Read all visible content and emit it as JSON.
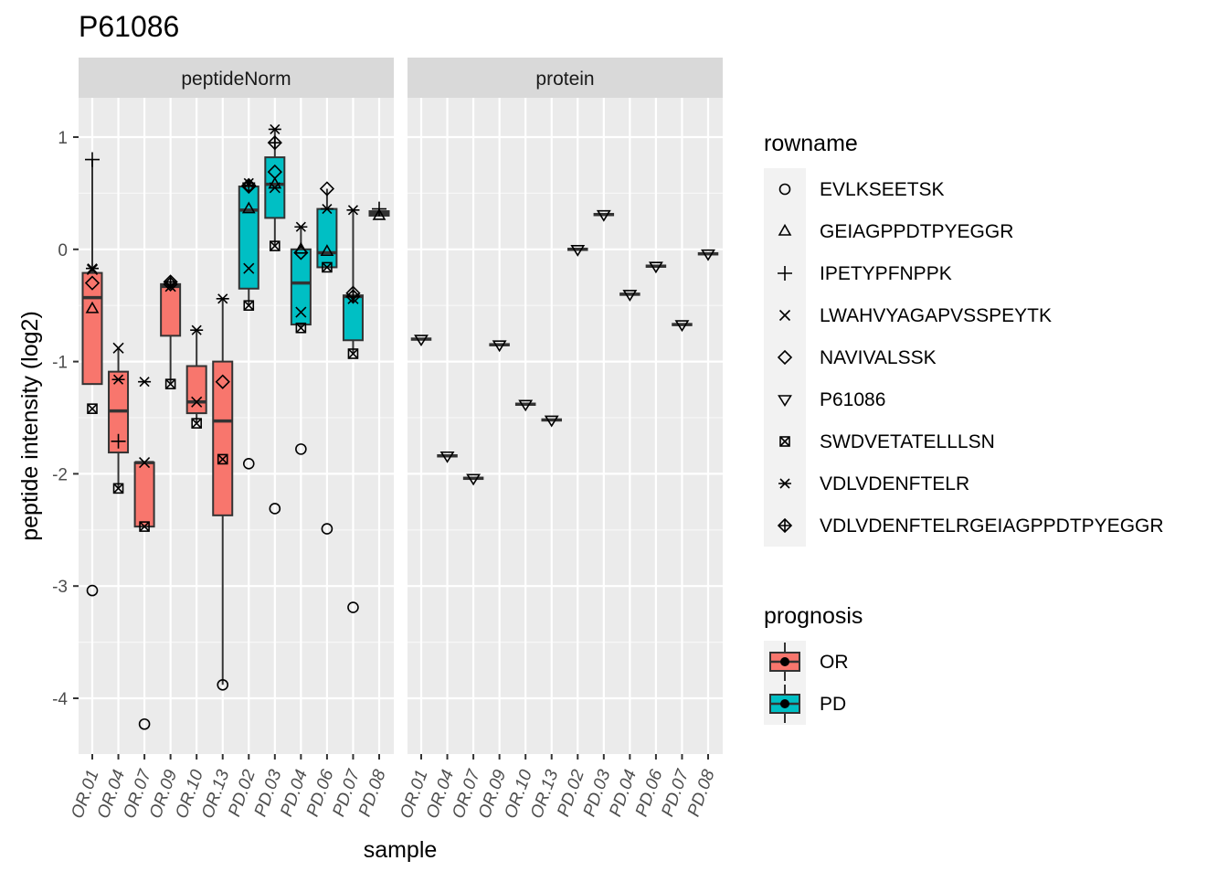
{
  "chart_data": {
    "type": "boxplot",
    "title": "P61086",
    "xlabel": "sample",
    "ylabel": "peptide intensity (log2)",
    "ylim": [
      -4.5,
      1.35
    ],
    "y_ticks": [
      -4,
      -3,
      -2,
      -1,
      0,
      1
    ],
    "y_tick_labels": [
      "-4",
      "-3",
      "-2",
      "-1",
      "0",
      "1"
    ],
    "grid": true,
    "panels": [
      "peptideNorm",
      "protein"
    ],
    "samples": [
      "OR.01",
      "OR.04",
      "OR.07",
      "OR.09",
      "OR.10",
      "OR.13",
      "PD.02",
      "PD.03",
      "PD.04",
      "PD.06",
      "PD.07",
      "PD.08"
    ],
    "sample_prognosis": [
      "OR",
      "OR",
      "OR",
      "OR",
      "OR",
      "OR",
      "PD",
      "PD",
      "PD",
      "PD",
      "PD",
      "PD"
    ],
    "legend_rowname": {
      "title": "rowname",
      "position": "right",
      "entries": [
        {
          "label": "EVLKSEETSK",
          "shape": "circle"
        },
        {
          "label": "GEIAGPPDTPYEGGR",
          "shape": "triangle-up"
        },
        {
          "label": "IPETYPFNPPK",
          "shape": "plus"
        },
        {
          "label": "LWAHVYAGAPVSSPEYTK",
          "shape": "cross"
        },
        {
          "label": "NAVIVALSSK",
          "shape": "diamond"
        },
        {
          "label": "P61086",
          "shape": "triangle-down"
        },
        {
          "label": "SWDVETATELLLSN",
          "shape": "square-cross"
        },
        {
          "label": "VDLVDENFTELR",
          "shape": "asterisk"
        },
        {
          "label": "VDLVDENFTELRGEIAGPPDTPYEGGR",
          "shape": "diamond-plus"
        }
      ]
    },
    "legend_prognosis": {
      "title": "prognosis",
      "position": "right",
      "entries": [
        {
          "label": "OR",
          "color": "#F8766D"
        },
        {
          "label": "PD",
          "color": "#00BFC4"
        }
      ]
    },
    "peptideNorm": {
      "boxes": [
        {
          "sample": "OR.01",
          "lower": -1.2,
          "q1": -1.2,
          "median": -0.43,
          "q3": -0.21,
          "upper": 0.8
        },
        {
          "sample": "OR.04",
          "lower": -2.13,
          "q1": -1.81,
          "median": -1.44,
          "q3": -1.09,
          "upper": -0.88
        },
        {
          "sample": "OR.07",
          "lower": -2.47,
          "q1": -2.47,
          "median": -1.9,
          "q3": -1.9,
          "upper": -1.9
        },
        {
          "sample": "OR.09",
          "lower": -1.2,
          "q1": -0.77,
          "median": -0.33,
          "q3": -0.31,
          "upper": -0.29
        },
        {
          "sample": "OR.10",
          "lower": -1.55,
          "q1": -1.46,
          "median": -1.36,
          "q3": -1.04,
          "upper": -0.72
        },
        {
          "sample": "OR.13",
          "lower": -3.88,
          "q1": -2.37,
          "median": -1.53,
          "q3": -1.0,
          "upper": -0.44
        },
        {
          "sample": "PD.02",
          "lower": -0.5,
          "q1": -0.35,
          "median": 0.35,
          "q3": 0.56,
          "upper": 0.59
        },
        {
          "sample": "PD.03",
          "lower": 0.03,
          "q1": 0.28,
          "median": 0.58,
          "q3": 0.82,
          "upper": 1.07
        },
        {
          "sample": "PD.04",
          "lower": -0.7,
          "q1": -0.67,
          "median": -0.3,
          "q3": 0.0,
          "upper": 0.2
        },
        {
          "sample": "PD.06",
          "lower": -0.16,
          "q1": -0.16,
          "median": -0.03,
          "q3": 0.36,
          "upper": 0.54
        },
        {
          "sample": "PD.07",
          "lower": -0.93,
          "q1": -0.81,
          "median": -0.42,
          "q3": -0.41,
          "upper": 0.35
        },
        {
          "sample": "PD.08",
          "lower": 0.3,
          "q1": 0.3,
          "median": 0.32,
          "q3": 0.34,
          "upper": 0.36
        }
      ],
      "points": [
        {
          "sample": "OR.01",
          "rowname": "EVLKSEETSK",
          "y": -3.04
        },
        {
          "sample": "OR.01",
          "rowname": "GEIAGPPDTPYEGGR",
          "y": -0.53
        },
        {
          "sample": "OR.01",
          "rowname": "IPETYPFNPPK",
          "y": 0.8
        },
        {
          "sample": "OR.01",
          "rowname": "LWAHVYAGAPVSSPEYTK",
          "y": -0.18
        },
        {
          "sample": "OR.01",
          "rowname": "NAVIVALSSK",
          "y": -0.3
        },
        {
          "sample": "OR.01",
          "rowname": "SWDVETATELLLSN",
          "y": -1.42
        },
        {
          "sample": "OR.01",
          "rowname": "VDLVDENFTELR",
          "y": -0.17
        },
        {
          "sample": "OR.04",
          "rowname": "IPETYPFNPPK",
          "y": -1.71
        },
        {
          "sample": "OR.04",
          "rowname": "LWAHVYAGAPVSSPEYTK",
          "y": -0.88
        },
        {
          "sample": "OR.04",
          "rowname": "SWDVETATELLLSN",
          "y": -2.13
        },
        {
          "sample": "OR.04",
          "rowname": "VDLVDENFTELR",
          "y": -1.16
        },
        {
          "sample": "OR.07",
          "rowname": "EVLKSEETSK",
          "y": -4.23
        },
        {
          "sample": "OR.07",
          "rowname": "LWAHVYAGAPVSSPEYTK",
          "y": -1.9
        },
        {
          "sample": "OR.07",
          "rowname": "SWDVETATELLLSN",
          "y": -2.47
        },
        {
          "sample": "OR.07",
          "rowname": "VDLVDENFTELR",
          "y": -1.18
        },
        {
          "sample": "OR.09",
          "rowname": "LWAHVYAGAPVSSPEYTK",
          "y": -0.33
        },
        {
          "sample": "OR.09",
          "rowname": "NAVIVALSSK",
          "y": -0.31
        },
        {
          "sample": "OR.09",
          "rowname": "SWDVETATELLLSN",
          "y": -1.2
        },
        {
          "sample": "OR.09",
          "rowname": "VDLVDENFTELRGEIAGPPDTPYEGGR",
          "y": -0.29
        },
        {
          "sample": "OR.10",
          "rowname": "LWAHVYAGAPVSSPEYTK",
          "y": -1.36
        },
        {
          "sample": "OR.10",
          "rowname": "SWDVETATELLLSN",
          "y": -1.55
        },
        {
          "sample": "OR.10",
          "rowname": "VDLVDENFTELR",
          "y": -0.72
        },
        {
          "sample": "OR.13",
          "rowname": "EVLKSEETSK",
          "y": -3.88
        },
        {
          "sample": "OR.13",
          "rowname": "NAVIVALSSK",
          "y": -1.18
        },
        {
          "sample": "OR.13",
          "rowname": "SWDVETATELLLSN",
          "y": -1.87
        },
        {
          "sample": "OR.13",
          "rowname": "VDLVDENFTELR",
          "y": -0.44
        },
        {
          "sample": "PD.02",
          "rowname": "EVLKSEETSK",
          "y": -1.91
        },
        {
          "sample": "PD.02",
          "rowname": "GEIAGPPDTPYEGGR",
          "y": 0.36
        },
        {
          "sample": "PD.02",
          "rowname": "LWAHVYAGAPVSSPEYTK",
          "y": -0.17
        },
        {
          "sample": "PD.02",
          "rowname": "NAVIVALSSK",
          "y": 0.56
        },
        {
          "sample": "PD.02",
          "rowname": "SWDVETATELLLSN",
          "y": -0.5
        },
        {
          "sample": "PD.02",
          "rowname": "VDLVDENFTELR",
          "y": 0.59
        },
        {
          "sample": "PD.02",
          "rowname": "VDLVDENFTELRGEIAGPPDTPYEGGR",
          "y": 0.57
        },
        {
          "sample": "PD.03",
          "rowname": "EVLKSEETSK",
          "y": -2.31
        },
        {
          "sample": "PD.03",
          "rowname": "GEIAGPPDTPYEGGR",
          "y": 0.58
        },
        {
          "sample": "PD.03",
          "rowname": "LWAHVYAGAPVSSPEYTK",
          "y": 0.55
        },
        {
          "sample": "PD.03",
          "rowname": "NAVIVALSSK",
          "y": 0.69
        },
        {
          "sample": "PD.03",
          "rowname": "SWDVETATELLLSN",
          "y": 0.03
        },
        {
          "sample": "PD.03",
          "rowname": "VDLVDENFTELR",
          "y": 1.07
        },
        {
          "sample": "PD.03",
          "rowname": "VDLVDENFTELRGEIAGPPDTPYEGGR",
          "y": 0.95
        },
        {
          "sample": "PD.04",
          "rowname": "EVLKSEETSK",
          "y": -1.78
        },
        {
          "sample": "PD.04",
          "rowname": "GEIAGPPDTPYEGGR",
          "y": 0.0
        },
        {
          "sample": "PD.04",
          "rowname": "LWAHVYAGAPVSSPEYTK",
          "y": -0.56
        },
        {
          "sample": "PD.04",
          "rowname": "NAVIVALSSK",
          "y": -0.03
        },
        {
          "sample": "PD.04",
          "rowname": "SWDVETATELLLSN",
          "y": -0.7
        },
        {
          "sample": "PD.04",
          "rowname": "VDLVDENFTELR",
          "y": 0.2
        },
        {
          "sample": "PD.06",
          "rowname": "EVLKSEETSK",
          "y": -2.49
        },
        {
          "sample": "PD.06",
          "rowname": "GEIAGPPDTPYEGGR",
          "y": -0.02
        },
        {
          "sample": "PD.06",
          "rowname": "NAVIVALSSK",
          "y": 0.54
        },
        {
          "sample": "PD.06",
          "rowname": "SWDVETATELLLSN",
          "y": -0.16
        },
        {
          "sample": "PD.06",
          "rowname": "VDLVDENFTELR",
          "y": 0.36
        },
        {
          "sample": "PD.07",
          "rowname": "EVLKSEETSK",
          "y": -3.19
        },
        {
          "sample": "PD.07",
          "rowname": "LWAHVYAGAPVSSPEYTK",
          "y": -0.44
        },
        {
          "sample": "PD.07",
          "rowname": "NAVIVALSSK",
          "y": -0.39
        },
        {
          "sample": "PD.07",
          "rowname": "SWDVETATELLLSN",
          "y": -0.93
        },
        {
          "sample": "PD.07",
          "rowname": "VDLVDENFTELR",
          "y": 0.35
        },
        {
          "sample": "PD.07",
          "rowname": "VDLVDENFTELRGEIAGPPDTPYEGGR",
          "y": -0.42
        },
        {
          "sample": "PD.08",
          "rowname": "GEIAGPPDTPYEGGR",
          "y": 0.3
        },
        {
          "sample": "PD.08",
          "rowname": "IPETYPFNPPK",
          "y": 0.36
        }
      ]
    },
    "protein": {
      "values": [
        {
          "sample": "OR.01",
          "y": -0.8
        },
        {
          "sample": "OR.04",
          "y": -1.84
        },
        {
          "sample": "OR.07",
          "y": -2.04
        },
        {
          "sample": "OR.09",
          "y": -0.85
        },
        {
          "sample": "OR.10",
          "y": -1.38
        },
        {
          "sample": "OR.13",
          "y": -1.52
        },
        {
          "sample": "PD.02",
          "y": 0.0
        },
        {
          "sample": "PD.03",
          "y": 0.31
        },
        {
          "sample": "PD.04",
          "y": -0.4
        },
        {
          "sample": "PD.06",
          "y": -0.15
        },
        {
          "sample": "PD.07",
          "y": -0.67
        },
        {
          "sample": "PD.08",
          "y": -0.04
        }
      ]
    }
  }
}
